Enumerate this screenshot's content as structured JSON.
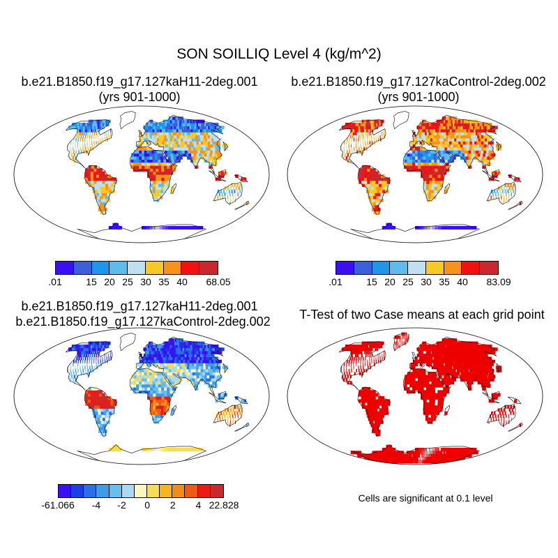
{
  "chart_data": {
    "type": "heatmap",
    "title": "SON SOILLIQ Level 4 (kg/m^2)",
    "panels": [
      {
        "id": "case1",
        "title_line1": "b.e21.B1850.f19_g17.127kaH11-2deg.001",
        "title_line2": "(yrs 901-1000)",
        "colorbar": {
          "colors": [
            "#3a10f2",
            "#3c5fdc",
            "#1e96ea",
            "#5cbcec",
            "#bfe0ee",
            "#f6c924",
            "#f9921a",
            "#f21010",
            "#c8282e"
          ],
          "labels": [
            ".01",
            "15",
            "20",
            "25",
            "30",
            "35",
            "40",
            "68.05"
          ],
          "label_boundaries": [
            0,
            2,
            3,
            4,
            5,
            6,
            7,
            9
          ]
        }
      },
      {
        "id": "case2",
        "title_line1": "b.e21.B1850.f19_g17.127kaControl-2deg.002",
        "title_line2": "(yrs 901-1000)",
        "colorbar": {
          "colors": [
            "#3a10f2",
            "#3c5fdc",
            "#1e96ea",
            "#5cbcec",
            "#bfe0ee",
            "#f6c924",
            "#f9921a",
            "#f21010",
            "#c8282e"
          ],
          "labels": [
            ".01",
            "15",
            "20",
            "25",
            "30",
            "35",
            "40",
            "83.09"
          ],
          "label_boundaries": [
            0,
            2,
            3,
            4,
            5,
            6,
            7,
            9
          ]
        }
      },
      {
        "id": "difference",
        "title_line1": "b.e21.B1850.f19_g17.127kaH11-2deg.001",
        "title_line2": "b.e21.B1850.f19_g17.127kaControl-2deg.002",
        "colorbar": {
          "colors": [
            "#3a10f2",
            "#1c3ee6",
            "#2a6fe8",
            "#3f9be8",
            "#67bff0",
            "#a8daf5",
            "#fbf6bf",
            "#f8dc55",
            "#f6b41f",
            "#f28c17",
            "#ef5a12",
            "#ea1b10",
            "#c8282e"
          ],
          "labels": [
            "-61.066",
            "-4",
            "-2",
            "0",
            "2",
            "4",
            "22.828"
          ],
          "label_boundaries": [
            0,
            3,
            5,
            7,
            9,
            11,
            13
          ]
        }
      },
      {
        "id": "ttest",
        "title_line1": "T-Test of two Case means at each grid point",
        "note": "Cells are significant at 0.1 level",
        "significance_color": "#ee0000"
      }
    ]
  }
}
